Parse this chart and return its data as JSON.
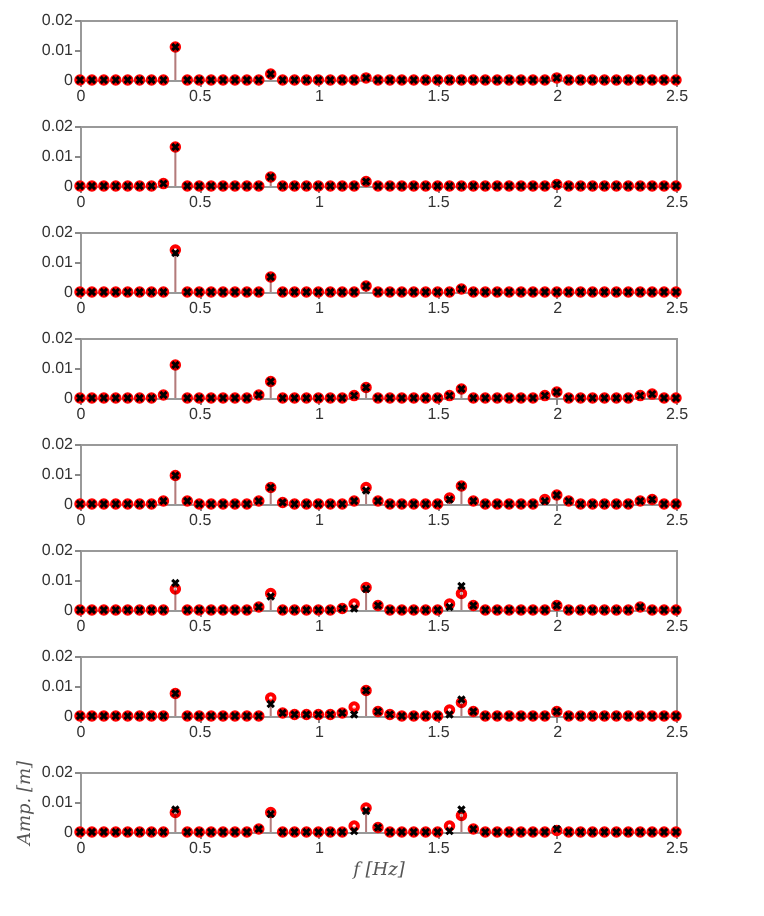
{
  "chart_data": [
    {
      "type": "lollipop",
      "x": [
        0,
        0.05,
        0.1,
        0.15,
        0.2,
        0.25,
        0.3,
        0.35,
        0.4,
        0.45,
        0.5,
        0.55,
        0.6,
        0.65,
        0.7,
        0.75,
        0.8,
        0.85,
        0.9,
        0.95,
        1,
        1.05,
        1.1,
        1.15,
        1.2,
        1.25,
        1.3,
        1.35,
        1.4,
        1.45,
        1.5,
        1.55,
        1.6,
        1.65,
        1.7,
        1.75,
        1.8,
        1.85,
        1.9,
        1.95,
        2,
        2.05,
        2.1,
        2.15,
        2.2,
        2.25,
        2.3,
        2.35,
        2.4,
        2.45,
        2.5
      ],
      "xlim": [
        0,
        2.5
      ],
      "ylim": [
        0,
        0.02
      ],
      "xticks": [
        0,
        0.5,
        1,
        1.5,
        2,
        2.5
      ],
      "yticks": [
        0,
        0.01,
        0.02
      ],
      "series": [
        {
          "color": "#ff0000",
          "marker": "circle",
          "values": [
            0,
            0,
            0,
            0,
            0,
            0,
            0,
            0,
            0.011,
            0,
            0,
            0,
            0,
            0,
            0,
            0,
            0.002,
            0,
            0,
            0,
            0,
            0,
            0,
            0,
            0.0007,
            0,
            0,
            0,
            0,
            0,
            0,
            0,
            0,
            0,
            0,
            0,
            0,
            0,
            0,
            0,
            0.0007,
            0,
            0,
            0,
            0,
            0,
            0,
            0,
            0,
            0,
            0
          ]
        },
        {
          "color": "#000000",
          "marker": "cross",
          "values": [
            0,
            0,
            0,
            0,
            0,
            0,
            0,
            0,
            0.011,
            0,
            0,
            0,
            0,
            0,
            0,
            0,
            0.002,
            0,
            0,
            0,
            0,
            0,
            0,
            0,
            0.0007,
            0,
            0,
            0,
            0,
            0,
            0,
            0,
            0,
            0,
            0,
            0,
            0,
            0,
            0,
            0,
            0.0007,
            0,
            0,
            0,
            0,
            0,
            0,
            0,
            0,
            0,
            0
          ]
        }
      ]
    },
    {
      "type": "lollipop",
      "x": [
        0,
        0.05,
        0.1,
        0.15,
        0.2,
        0.25,
        0.3,
        0.35,
        0.4,
        0.45,
        0.5,
        0.55,
        0.6,
        0.65,
        0.7,
        0.75,
        0.8,
        0.85,
        0.9,
        0.95,
        1,
        1.05,
        1.1,
        1.15,
        1.2,
        1.25,
        1.3,
        1.35,
        1.4,
        1.45,
        1.5,
        1.55,
        1.6,
        1.65,
        1.7,
        1.75,
        1.8,
        1.85,
        1.9,
        1.95,
        2,
        2.05,
        2.1,
        2.15,
        2.2,
        2.25,
        2.3,
        2.35,
        2.4,
        2.45,
        2.5
      ],
      "xlim": [
        0,
        2.5
      ],
      "ylim": [
        0,
        0.02
      ],
      "xticks": [
        0,
        0.5,
        1,
        1.5,
        2,
        2.5
      ],
      "yticks": [
        0,
        0.01,
        0.02
      ],
      "series": [
        {
          "color": "#ff0000",
          "marker": "circle",
          "values": [
            0,
            0,
            0,
            0,
            0,
            0,
            0,
            0.0008,
            0.013,
            0,
            0,
            0,
            0,
            0,
            0,
            0,
            0.003,
            0,
            0,
            0,
            0,
            0,
            0,
            0,
            0.0015,
            0,
            0,
            0,
            0,
            0,
            0,
            0,
            0,
            0,
            0,
            0,
            0,
            0,
            0,
            0,
            0.0005,
            0,
            0,
            0,
            0,
            0,
            0,
            0,
            0,
            0,
            0
          ]
        },
        {
          "color": "#000000",
          "marker": "cross",
          "values": [
            0,
            0,
            0,
            0,
            0,
            0,
            0,
            0.0008,
            0.013,
            0,
            0,
            0,
            0,
            0,
            0,
            0,
            0.003,
            0,
            0,
            0,
            0,
            0,
            0,
            0,
            0.0015,
            0,
            0,
            0,
            0,
            0,
            0,
            0,
            0,
            0,
            0,
            0,
            0,
            0,
            0,
            0,
            0.0005,
            0,
            0,
            0,
            0,
            0,
            0,
            0,
            0,
            0,
            0
          ]
        }
      ]
    },
    {
      "type": "lollipop",
      "x": [
        0,
        0.05,
        0.1,
        0.15,
        0.2,
        0.25,
        0.3,
        0.35,
        0.4,
        0.45,
        0.5,
        0.55,
        0.6,
        0.65,
        0.7,
        0.75,
        0.8,
        0.85,
        0.9,
        0.95,
        1,
        1.05,
        1.1,
        1.15,
        1.2,
        1.25,
        1.3,
        1.35,
        1.4,
        1.45,
        1.5,
        1.55,
        1.6,
        1.65,
        1.7,
        1.75,
        1.8,
        1.85,
        1.9,
        1.95,
        2,
        2.05,
        2.1,
        2.15,
        2.2,
        2.25,
        2.3,
        2.35,
        2.4,
        2.45,
        2.5
      ],
      "xlim": [
        0,
        2.5
      ],
      "ylim": [
        0,
        0.02
      ],
      "xticks": [
        0,
        0.5,
        1,
        1.5,
        2,
        2.5
      ],
      "yticks": [
        0,
        0.01,
        0.02
      ],
      "series": [
        {
          "color": "#ff0000",
          "marker": "circle",
          "values": [
            0,
            0,
            0,
            0,
            0,
            0,
            0,
            0,
            0.014,
            0,
            0,
            0,
            0,
            0,
            0,
            0,
            0.005,
            0,
            0,
            0,
            0,
            0,
            0,
            0,
            0.002,
            0,
            0,
            0,
            0,
            0,
            0,
            0,
            0.001,
            0,
            0,
            0,
            0,
            0,
            0,
            0,
            0,
            0,
            0,
            0,
            0,
            0,
            0,
            0,
            0,
            0,
            0
          ]
        },
        {
          "color": "#000000",
          "marker": "cross",
          "values": [
            0,
            0,
            0,
            0,
            0,
            0,
            0,
            0,
            0.013,
            0,
            0,
            0,
            0,
            0,
            0,
            0,
            0.005,
            0,
            0,
            0,
            0,
            0,
            0,
            0,
            0.002,
            0,
            0,
            0,
            0,
            0,
            0,
            0,
            0.001,
            0,
            0,
            0,
            0,
            0,
            0,
            0,
            0,
            0,
            0,
            0,
            0,
            0,
            0,
            0,
            0,
            0,
            0
          ]
        }
      ]
    },
    {
      "type": "lollipop",
      "x": [
        0,
        0.05,
        0.1,
        0.15,
        0.2,
        0.25,
        0.3,
        0.35,
        0.4,
        0.45,
        0.5,
        0.55,
        0.6,
        0.65,
        0.7,
        0.75,
        0.8,
        0.85,
        0.9,
        0.95,
        1,
        1.05,
        1.1,
        1.15,
        1.2,
        1.25,
        1.3,
        1.35,
        1.4,
        1.45,
        1.5,
        1.55,
        1.6,
        1.65,
        1.7,
        1.75,
        1.8,
        1.85,
        1.9,
        1.95,
        2,
        2.05,
        2.1,
        2.15,
        2.2,
        2.25,
        2.3,
        2.35,
        2.4,
        2.45,
        2.5
      ],
      "xlim": [
        0,
        2.5
      ],
      "ylim": [
        0,
        0.02
      ],
      "xticks": [
        0,
        0.5,
        1,
        1.5,
        2,
        2.5
      ],
      "yticks": [
        0,
        0.01,
        0.02
      ],
      "series": [
        {
          "color": "#ff0000",
          "marker": "circle",
          "values": [
            0,
            0,
            0,
            0,
            0,
            0,
            0,
            0.001,
            0.011,
            0,
            0,
            0,
            0,
            0,
            0,
            0.001,
            0.0055,
            0,
            0,
            0,
            0,
            0,
            0,
            0.0008,
            0.0035,
            0,
            0,
            0,
            0,
            0,
            0,
            0.0008,
            0.003,
            0,
            0,
            0,
            0,
            0,
            0,
            0.0008,
            0.002,
            0,
            0,
            0,
            0,
            0,
            0,
            0.0008,
            0.0013,
            0,
            0
          ]
        },
        {
          "color": "#000000",
          "marker": "cross",
          "values": [
            0,
            0,
            0,
            0,
            0,
            0,
            0,
            0.001,
            0.011,
            0,
            0,
            0,
            0,
            0,
            0,
            0.001,
            0.0055,
            0,
            0,
            0,
            0,
            0,
            0,
            0.0008,
            0.0035,
            0,
            0,
            0,
            0,
            0,
            0,
            0.0008,
            0.003,
            0,
            0,
            0,
            0,
            0,
            0,
            0.0008,
            0.002,
            0,
            0,
            0,
            0,
            0,
            0,
            0.0008,
            0.0013,
            0,
            0
          ]
        }
      ]
    },
    {
      "type": "lollipop",
      "x": [
        0,
        0.05,
        0.1,
        0.15,
        0.2,
        0.25,
        0.3,
        0.35,
        0.4,
        0.45,
        0.5,
        0.55,
        0.6,
        0.65,
        0.7,
        0.75,
        0.8,
        0.85,
        0.9,
        0.95,
        1,
        1.05,
        1.1,
        1.15,
        1.2,
        1.25,
        1.3,
        1.35,
        1.4,
        1.45,
        1.5,
        1.55,
        1.6,
        1.65,
        1.7,
        1.75,
        1.8,
        1.85,
        1.9,
        1.95,
        2,
        2.05,
        2.1,
        2.15,
        2.2,
        2.25,
        2.3,
        2.35,
        2.4,
        2.45,
        2.5
      ],
      "xlim": [
        0,
        2.5
      ],
      "ylim": [
        0,
        0.02
      ],
      "xticks": [
        0,
        0.5,
        1,
        1.5,
        2,
        2.5
      ],
      "yticks": [
        0,
        0.01,
        0.02
      ],
      "series": [
        {
          "color": "#ff0000",
          "marker": "circle",
          "values": [
            0,
            0,
            0,
            0,
            0,
            0,
            0,
            0.001,
            0.0095,
            0.001,
            0,
            0,
            0,
            0,
            0,
            0.001,
            0.0055,
            0.0005,
            0,
            0,
            0,
            0,
            0,
            0.001,
            0.0055,
            0.001,
            0,
            0,
            0,
            0,
            0,
            0.002,
            0.006,
            0.001,
            0,
            0,
            0,
            0,
            0,
            0.0015,
            0.003,
            0.001,
            0,
            0,
            0,
            0,
            0,
            0.001,
            0.0015,
            0,
            0
          ]
        },
        {
          "color": "#000000",
          "marker": "cross",
          "values": [
            0,
            0,
            0,
            0,
            0,
            0,
            0,
            0.001,
            0.0095,
            0.001,
            0,
            0,
            0,
            0,
            0,
            0.001,
            0.0055,
            0.0005,
            0,
            0,
            0,
            0,
            0,
            0.001,
            0.0045,
            0.001,
            0,
            0,
            0,
            0,
            0,
            0.0015,
            0.006,
            0.001,
            0,
            0,
            0,
            0,
            0,
            0.001,
            0.003,
            0.001,
            0,
            0,
            0,
            0,
            0,
            0.001,
            0.0015,
            0,
            0
          ]
        }
      ]
    },
    {
      "type": "lollipop",
      "x": [
        0,
        0.05,
        0.1,
        0.15,
        0.2,
        0.25,
        0.3,
        0.35,
        0.4,
        0.45,
        0.5,
        0.55,
        0.6,
        0.65,
        0.7,
        0.75,
        0.8,
        0.85,
        0.9,
        0.95,
        1,
        1.05,
        1.1,
        1.15,
        1.2,
        1.25,
        1.3,
        1.35,
        1.4,
        1.45,
        1.5,
        1.55,
        1.6,
        1.65,
        1.7,
        1.75,
        1.8,
        1.85,
        1.9,
        1.95,
        2,
        2.05,
        2.1,
        2.15,
        2.2,
        2.25,
        2.3,
        2.35,
        2.4,
        2.45,
        2.5
      ],
      "xlim": [
        0,
        2.5
      ],
      "ylim": [
        0,
        0.02
      ],
      "xticks": [
        0,
        0.5,
        1,
        1.5,
        2,
        2.5
      ],
      "yticks": [
        0,
        0.01,
        0.02
      ],
      "series": [
        {
          "color": "#ff0000",
          "marker": "circle",
          "values": [
            0,
            0,
            0,
            0,
            0,
            0,
            0,
            0,
            0.007,
            0,
            0,
            0,
            0,
            0,
            0,
            0.001,
            0.0055,
            0,
            0,
            0,
            0,
            0,
            0.0005,
            0.002,
            0.0075,
            0.0015,
            0,
            0,
            0,
            0,
            0,
            0.002,
            0.0055,
            0.0015,
            0,
            0,
            0,
            0,
            0,
            0,
            0.0015,
            0,
            0,
            0,
            0,
            0,
            0,
            0.001,
            0,
            0,
            0
          ]
        },
        {
          "color": "#000000",
          "marker": "cross",
          "values": [
            0,
            0,
            0,
            0,
            0,
            0,
            0,
            0,
            0.009,
            0,
            0,
            0,
            0,
            0,
            0,
            0.001,
            0.0045,
            0,
            0,
            0,
            0,
            0,
            0.0005,
            0.0005,
            0.007,
            0.0015,
            0,
            0,
            0,
            0,
            0,
            0.001,
            0.008,
            0.0015,
            0,
            0,
            0,
            0,
            0,
            0,
            0.0015,
            0,
            0,
            0,
            0,
            0,
            0,
            0.001,
            0,
            0,
            0
          ]
        }
      ]
    },
    {
      "type": "lollipop",
      "x": [
        0,
        0.05,
        0.1,
        0.15,
        0.2,
        0.25,
        0.3,
        0.35,
        0.4,
        0.45,
        0.5,
        0.55,
        0.6,
        0.65,
        0.7,
        0.75,
        0.8,
        0.85,
        0.9,
        0.95,
        1,
        1.05,
        1.1,
        1.15,
        1.2,
        1.25,
        1.3,
        1.35,
        1.4,
        1.45,
        1.5,
        1.55,
        1.6,
        1.65,
        1.7,
        1.75,
        1.8,
        1.85,
        1.9,
        1.95,
        2,
        2.05,
        2.1,
        2.15,
        2.2,
        2.25,
        2.3,
        2.35,
        2.4,
        2.45,
        2.5
      ],
      "xlim": [
        0,
        2.5
      ],
      "ylim": [
        0,
        0.02
      ],
      "xticks": [
        0,
        0.5,
        1,
        1.5,
        2,
        2.5
      ],
      "yticks": [
        0,
        0.01,
        0.02
      ],
      "series": [
        {
          "color": "#ff0000",
          "marker": "circle",
          "values": [
            0,
            0,
            0,
            0,
            0,
            0,
            0,
            0,
            0.0075,
            0,
            0,
            0,
            0,
            0,
            0,
            0,
            0.006,
            0.001,
            0.0005,
            0.0005,
            0.0005,
            0.0005,
            0.001,
            0.003,
            0.0085,
            0.0015,
            0.0005,
            0,
            0,
            0,
            0,
            0.002,
            0.0045,
            0.0015,
            0,
            0,
            0,
            0,
            0,
            0,
            0.0015,
            0,
            0,
            0,
            0,
            0,
            0,
            0,
            0,
            0,
            0
          ]
        },
        {
          "color": "#000000",
          "marker": "cross",
          "values": [
            0,
            0,
            0,
            0,
            0,
            0,
            0,
            0,
            0.0075,
            0,
            0,
            0,
            0,
            0,
            0,
            0,
            0.004,
            0.001,
            0.0005,
            0.0005,
            0.0005,
            0.0005,
            0.001,
            0.0005,
            0.0085,
            0.0015,
            0.0005,
            0,
            0,
            0,
            0,
            0.0005,
            0.0055,
            0.0015,
            0,
            0,
            0,
            0,
            0,
            0,
            0.0015,
            0,
            0,
            0,
            0,
            0,
            0,
            0,
            0,
            0,
            0
          ]
        }
      ]
    },
    {
      "type": "lollipop",
      "x": [
        0,
        0.05,
        0.1,
        0.15,
        0.2,
        0.25,
        0.3,
        0.35,
        0.4,
        0.45,
        0.5,
        0.55,
        0.6,
        0.65,
        0.7,
        0.75,
        0.8,
        0.85,
        0.9,
        0.95,
        1,
        1.05,
        1.1,
        1.15,
        1.2,
        1.25,
        1.3,
        1.35,
        1.4,
        1.45,
        1.5,
        1.55,
        1.6,
        1.65,
        1.7,
        1.75,
        1.8,
        1.85,
        1.9,
        1.95,
        2,
        2.05,
        2.1,
        2.15,
        2.2,
        2.25,
        2.3,
        2.35,
        2.4,
        2.45,
        2.5
      ],
      "xlim": [
        0,
        2.5
      ],
      "ylim": [
        0,
        0.02
      ],
      "xticks": [
        0,
        0.5,
        1,
        1.5,
        2,
        2.5
      ],
      "yticks": [
        0,
        0.01,
        0.02
      ],
      "xlabel": "f    [Hz]",
      "ylabel": "Amp.   [m]",
      "series": [
        {
          "color": "#ff0000",
          "marker": "circle",
          "values": [
            0,
            0,
            0,
            0,
            0,
            0,
            0,
            0,
            0.0065,
            0,
            0,
            0,
            0,
            0,
            0,
            0.001,
            0.0065,
            0,
            0,
            0,
            0,
            0,
            0,
            0.002,
            0.008,
            0.0015,
            0,
            0,
            0,
            0,
            0,
            0.002,
            0.0055,
            0.001,
            0,
            0,
            0,
            0,
            0,
            0,
            0.0005,
            0,
            0,
            0,
            0,
            0,
            0,
            0,
            0,
            0,
            0
          ]
        },
        {
          "color": "#000000",
          "marker": "cross",
          "values": [
            0,
            0,
            0,
            0,
            0,
            0,
            0,
            0,
            0.0075,
            0,
            0,
            0,
            0,
            0,
            0,
            0.001,
            0.006,
            0,
            0,
            0,
            0,
            0,
            0,
            0.0003,
            0.007,
            0.0015,
            0,
            0,
            0,
            0,
            0,
            0.0003,
            0.0075,
            0.001,
            0,
            0,
            0,
            0,
            0,
            0,
            0.001,
            0,
            0,
            0,
            0,
            0,
            0,
            0,
            0,
            0,
            0
          ]
        }
      ]
    }
  ]
}
